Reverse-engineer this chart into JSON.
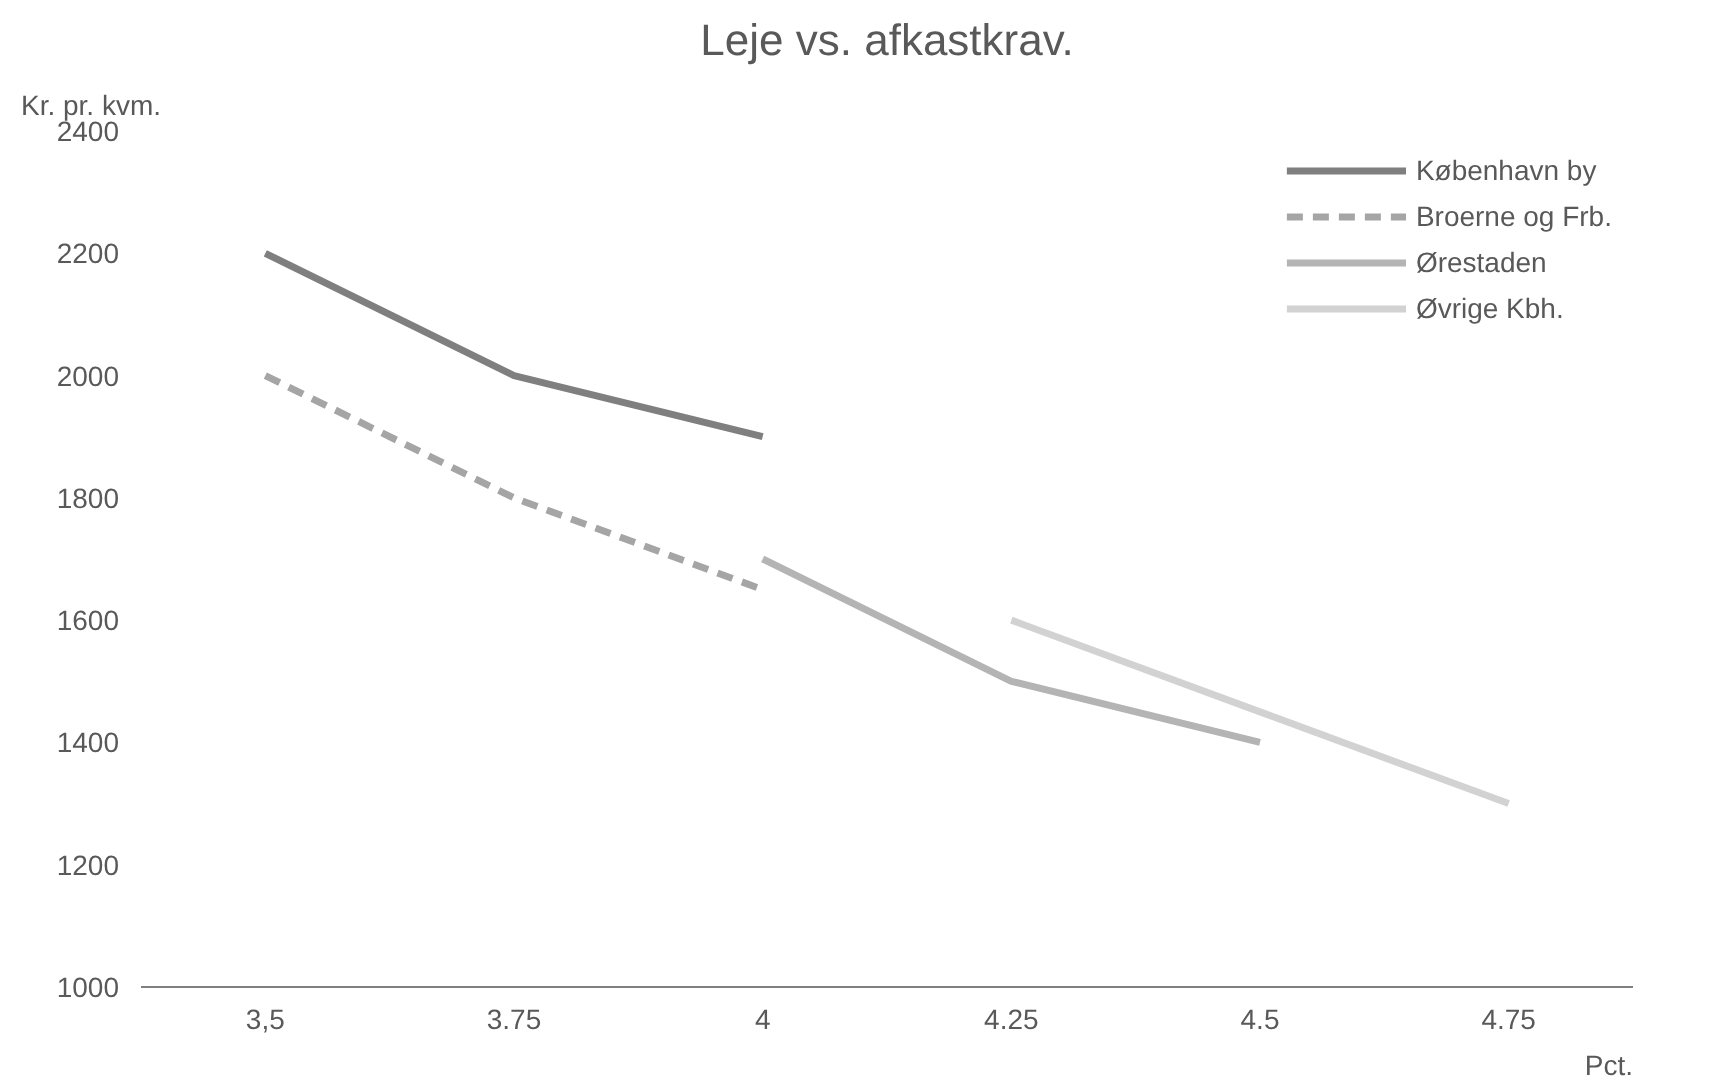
{
  "chart_data": {
    "type": "line",
    "title": "Leje vs. afkastkrav.",
    "xlabel": "Pct.",
    "ylabel": "Kr. pr. kvm.",
    "categories": [
      "3,5",
      "3.75",
      "4",
      "4.25",
      "4.5",
      "4.75"
    ],
    "series": [
      {
        "name": "København by",
        "color": "#7f7f7f",
        "values": [
          2200,
          2000,
          1900,
          null,
          null,
          null
        ]
      },
      {
        "name": "Broerne og Frb.",
        "color": "#a5a5a5",
        "line_style": "dashed",
        "values": [
          2000,
          1800,
          1650,
          null,
          null,
          null
        ]
      },
      {
        "name": "Ørestaden",
        "color": "#b4b4b4",
        "values": [
          null,
          null,
          1700,
          1500,
          1400,
          null
        ]
      },
      {
        "name": "Øvrige Kbh.",
        "color": "#d2d2d2",
        "values": [
          null,
          null,
          null,
          1600,
          1450,
          1300
        ]
      }
    ],
    "ylim": [
      1000,
      2400
    ],
    "yticks": [
      1000,
      1200,
      1400,
      1600,
      1800,
      2000,
      2200,
      2400
    ],
    "grid": false,
    "legend": "top right",
    "line_style": "solid",
    "marker": "none"
  }
}
